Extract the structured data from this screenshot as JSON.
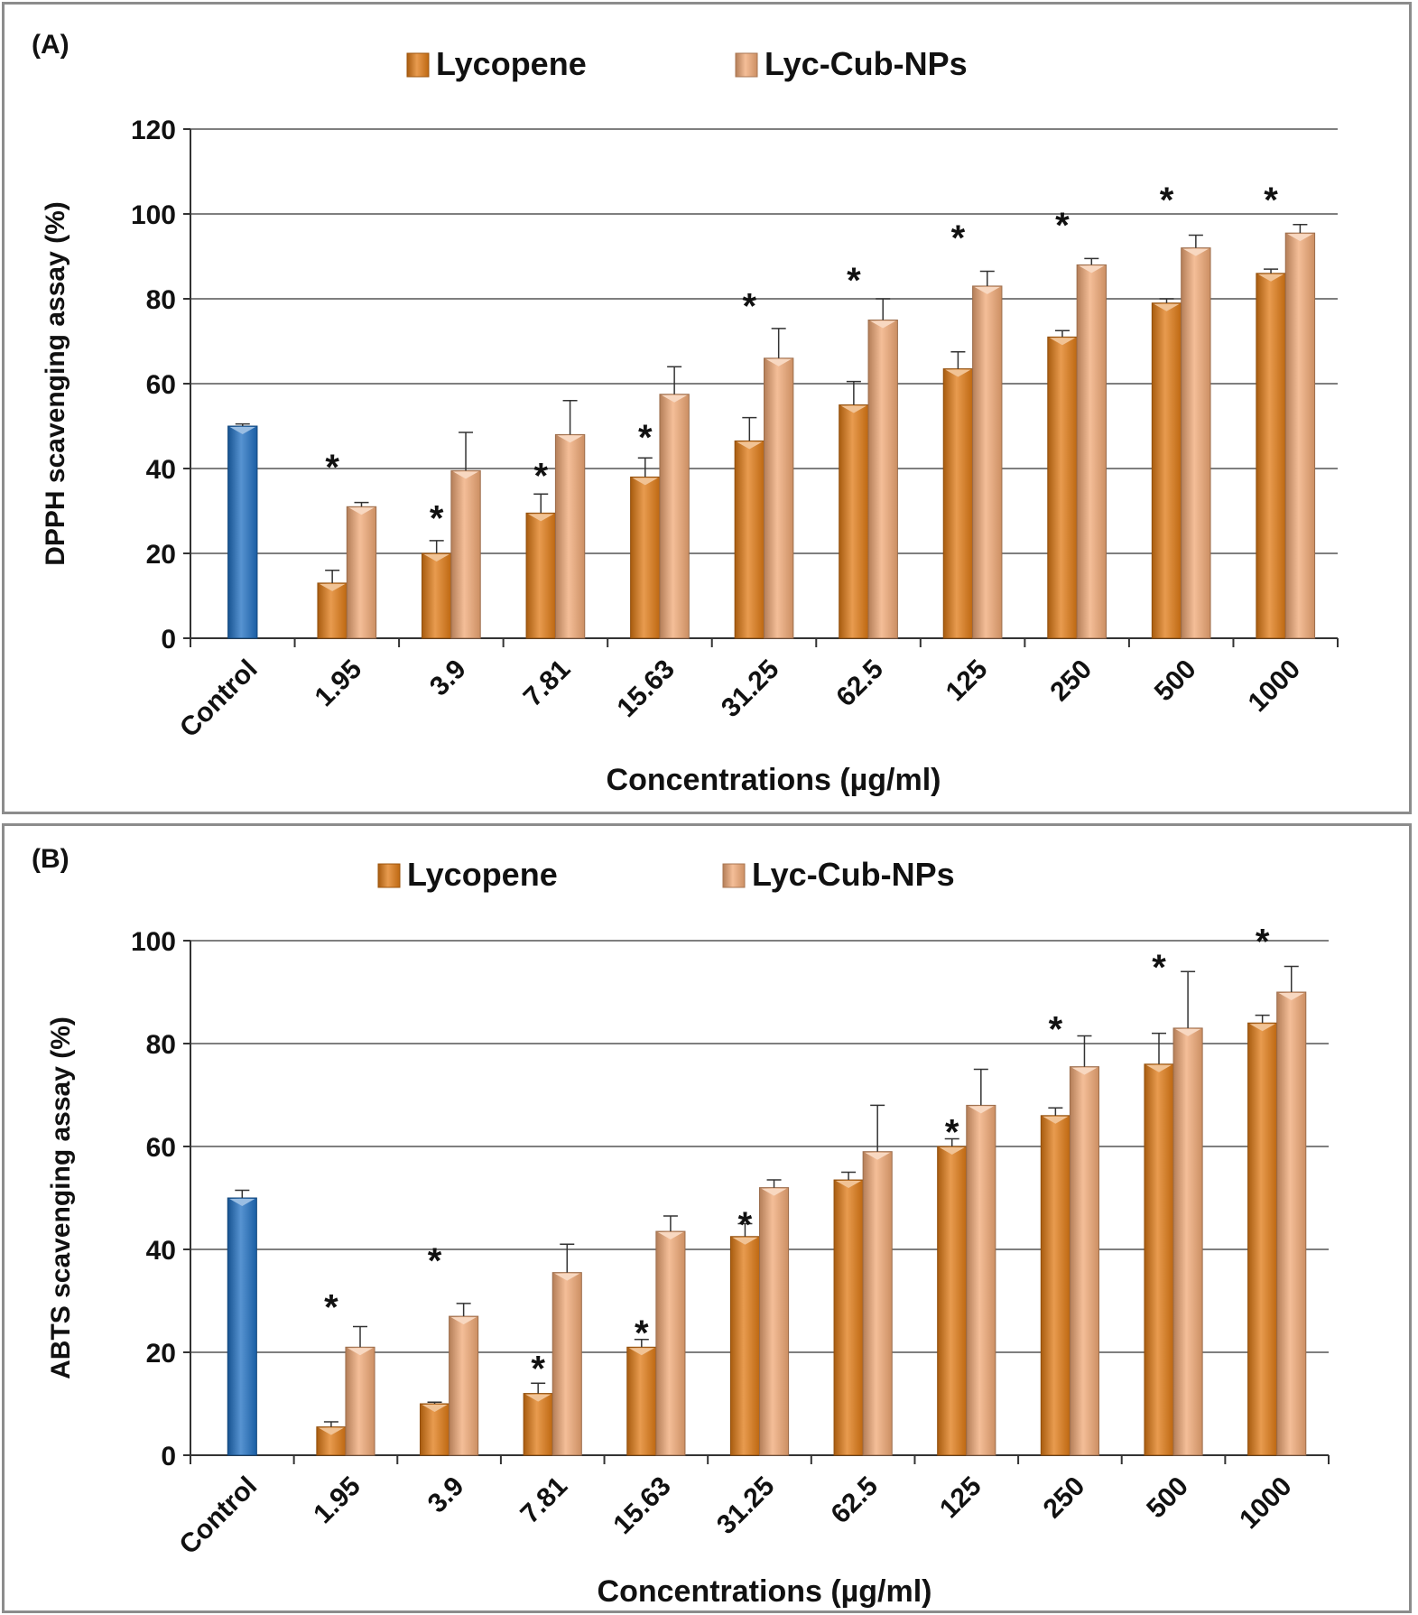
{
  "chart_data": [
    {
      "type": "bar",
      "panel_label": "(A)",
      "ylabel": "DPPH scavenging assay (%)",
      "xlabel": "Concentrations (µg/ml)",
      "ylim": [
        0,
        120
      ],
      "yticks": [
        "0",
        "20",
        "40",
        "60",
        "80",
        "100",
        "120"
      ],
      "categories": [
        "Control",
        "1.95",
        "3.9",
        "7.81",
        "15.63",
        "31.25",
        "62.5",
        "125",
        "250",
        "500",
        "1000"
      ],
      "control": {
        "name": "Control",
        "value": 50,
        "error": 0.5,
        "color": "#1f6fc1"
      },
      "series": [
        {
          "name": "Lycopene",
          "color": "#e07a14",
          "values": [
            null,
            13,
            20,
            29.5,
            38,
            46.5,
            55,
            63.5,
            71,
            79,
            86
          ],
          "errors": [
            null,
            3,
            3,
            4.5,
            4.5,
            5.5,
            5.5,
            4,
            1.5,
            1,
            1
          ]
        },
        {
          "name": "Lyc-Cub-NPs",
          "color": "#f0a875",
          "values": [
            null,
            31,
            39.5,
            48,
            57.5,
            66,
            75,
            83,
            88,
            92,
            95.5
          ],
          "errors": [
            null,
            1,
            9,
            8,
            6.5,
            7,
            5,
            3.5,
            1.5,
            3,
            2
          ]
        }
      ],
      "significance": [
        {
          "category": "1.95",
          "label": "*",
          "y": 43
        },
        {
          "category": "3.9",
          "label": "*",
          "y": 31
        },
        {
          "category": "7.81",
          "label": "*",
          "y": 41
        },
        {
          "category": "15.63",
          "label": "*",
          "y": 50
        },
        {
          "category": "31.25",
          "label": "*",
          "y": 81
        },
        {
          "category": "62.5",
          "label": "*",
          "y": 87
        },
        {
          "category": "125",
          "label": "*",
          "y": 97
        },
        {
          "category": "250",
          "label": "*",
          "y": 100
        },
        {
          "category": "500",
          "label": "*",
          "y": 106
        },
        {
          "category": "1000",
          "label": "*",
          "y": 106
        }
      ]
    },
    {
      "type": "bar",
      "panel_label": "(B)",
      "ylabel": "ABTS scavenging assay (%)",
      "xlabel": "Concentrations (µg/ml)",
      "ylim": [
        0,
        100
      ],
      "yticks": [
        "0",
        "20",
        "40",
        "60",
        "80",
        "100"
      ],
      "categories": [
        "Control",
        "1.95",
        "3.9",
        "7.81",
        "15.63",
        "31.25",
        "62.5",
        "125",
        "250",
        "500",
        "1000"
      ],
      "control": {
        "name": "Control",
        "value": 50,
        "error": 1.5,
        "color": "#1f6fc1"
      },
      "series": [
        {
          "name": "Lycopene",
          "color": "#e07a14",
          "values": [
            null,
            5.5,
            10,
            12,
            21,
            42.5,
            53.5,
            60,
            66,
            76,
            84
          ],
          "errors": [
            null,
            1,
            0.3,
            2,
            1.5,
            2.5,
            1.5,
            1.5,
            1.5,
            6,
            1.5
          ]
        },
        {
          "name": "Lyc-Cub-NPs",
          "color": "#f0a875",
          "values": [
            null,
            21,
            27,
            35.5,
            43.5,
            52,
            59,
            68,
            75.5,
            83,
            90
          ],
          "errors": [
            null,
            4,
            2.5,
            5.5,
            3,
            1.5,
            9,
            7,
            6,
            11,
            5
          ]
        }
      ],
      "significance": [
        {
          "category": "1.95",
          "label": "*",
          "y": 31
        },
        {
          "category": "3.9",
          "label": "*",
          "y": 40
        },
        {
          "category": "7.81",
          "label": "*",
          "y": 19
        },
        {
          "category": "15.63",
          "label": "*",
          "y": 26
        },
        {
          "category": "31.25",
          "label": "*",
          "y": 47
        },
        {
          "category": "125",
          "label": "*",
          "y": 65
        },
        {
          "category": "250",
          "label": "*",
          "y": 85
        },
        {
          "category": "500",
          "label": "*",
          "y": 97
        },
        {
          "category": "1000",
          "label": "*",
          "y": 102
        }
      ]
    }
  ]
}
